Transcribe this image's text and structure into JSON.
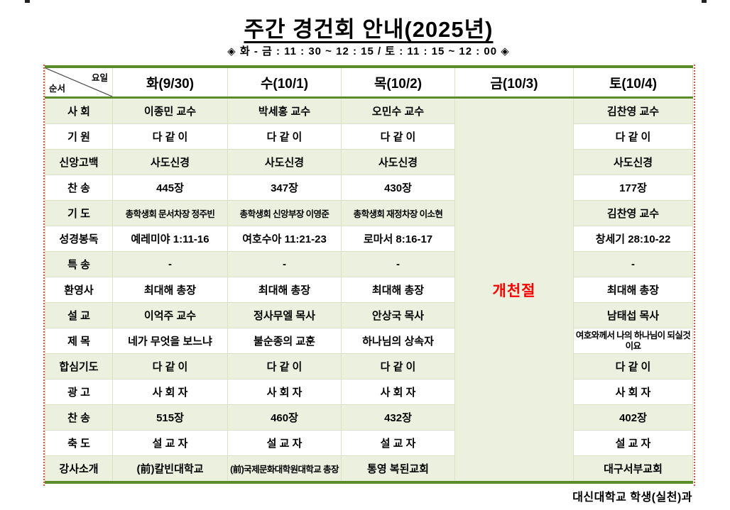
{
  "page": {
    "title": "주간 경건회 안내(2025년)",
    "subtitle": "◈ 화 - 금 : 11 : 30 ~ 12 : 15 / 토 : 11 : 15 ~ 12 : 00 ◈",
    "footer": "대신대학교 학생(실천)과"
  },
  "colors": {
    "band_green": "#ebf1de",
    "border_green": "#5a8c2a",
    "grid_line": "#d8e4c6",
    "holiday_red": "#ff0000",
    "margin_line_red": "#f24b3f"
  },
  "table": {
    "corner": {
      "top_right": "요일",
      "bottom_left": "순서"
    },
    "day_headers": [
      "화(9/30)",
      "수(10/1)",
      "목(10/2)",
      "금(10/3)",
      "토(10/4)"
    ],
    "holiday": {
      "label": "개천절",
      "column": "금(10/3)"
    },
    "rows": [
      {
        "label": "사 회",
        "cells": [
          "이종민 교수",
          "박세홍 교수",
          "오민수 교수",
          "김찬영 교수"
        ]
      },
      {
        "label": "기 원",
        "cells": [
          "다 같 이",
          "다 같 이",
          "다 같 이",
          "다 같 이"
        ]
      },
      {
        "label": "신앙고백",
        "cells": [
          "사도신경",
          "사도신경",
          "사도신경",
          "사도신경"
        ]
      },
      {
        "label": "찬 송",
        "cells": [
          "445장",
          "347장",
          "430장",
          "177장"
        ]
      },
      {
        "label": "기 도",
        "cells": [
          "총학생회 문서차장 정주빈",
          "총학생회 신앙부장 이영준",
          "총학생회 재정차장 이소현",
          "김찬영 교수"
        ]
      },
      {
        "label": "성경봉독",
        "cells": [
          "예레미야 1:11-16",
          "여호수아 11:21-23",
          "로마서 8:16-17",
          "창세기 28:10-22"
        ]
      },
      {
        "label": "특 송",
        "cells": [
          "-",
          "-",
          "-",
          "-"
        ]
      },
      {
        "label": "환영사",
        "cells": [
          "최대해 총장",
          "최대해 총장",
          "최대해 총장",
          "최대해 총장"
        ]
      },
      {
        "label": "설 교",
        "cells": [
          "이억주 교수",
          "정사무엘 목사",
          "안상국 목사",
          "남태섭 목사"
        ]
      },
      {
        "label": "제 목",
        "cells": [
          "네가 무엇을 보느냐",
          "불순종의 교훈",
          "하나님의 상속자",
          "여호와께서 나의 하나님이 되실것이요"
        ]
      },
      {
        "label": "합심기도",
        "cells": [
          "다 같 이",
          "다 같 이",
          "다 같 이",
          "다 같 이"
        ]
      },
      {
        "label": "광 고",
        "cells": [
          "사 회 자",
          "사 회 자",
          "사 회 자",
          "사 회 자"
        ]
      },
      {
        "label": "찬 송",
        "cells": [
          "515장",
          "460장",
          "432장",
          "402장"
        ]
      },
      {
        "label": "축 도",
        "cells": [
          "설 교 자",
          "설 교 자",
          "설 교 자",
          "설 교 자"
        ]
      },
      {
        "label": "강사소개",
        "cells": [
          "(前)칼빈대학교",
          "(前)국제문화대학원대학교 총장",
          "통영 복된교회",
          "대구서부교회"
        ]
      }
    ]
  }
}
